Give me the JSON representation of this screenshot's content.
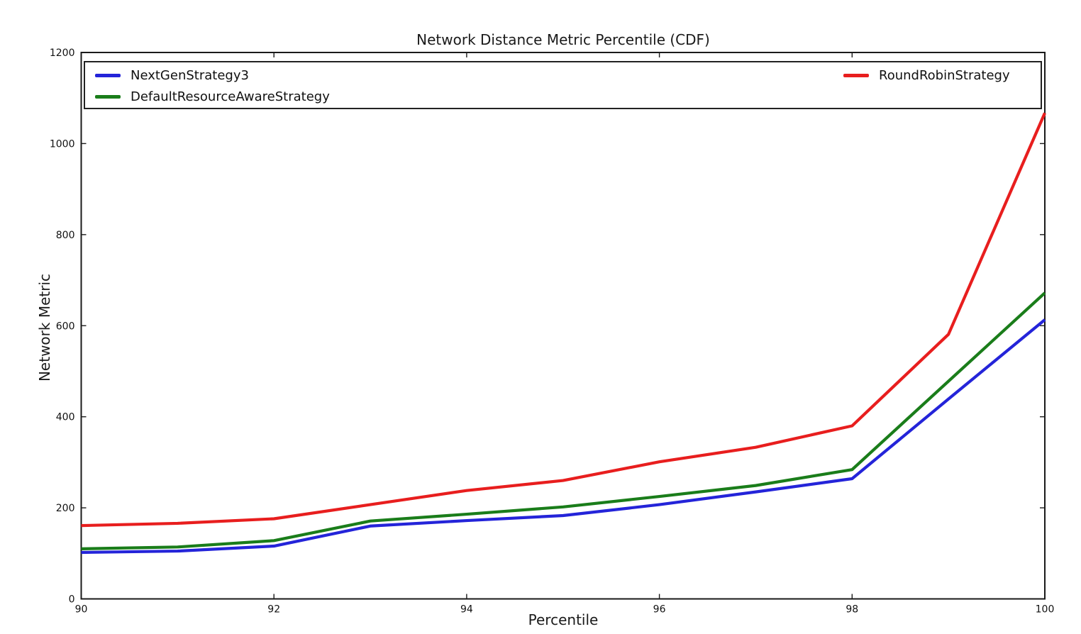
{
  "title": "Network Distance Metric Percentile (CDF)",
  "chart_data": {
    "type": "line",
    "title": "Network Distance Metric Percentile (CDF)",
    "xlabel": "Percentile",
    "ylabel": "Network Metric",
    "xlim": [
      90,
      100
    ],
    "ylim": [
      0,
      1200
    ],
    "xticks": [
      90,
      92,
      94,
      96,
      98,
      100
    ],
    "yticks": [
      0,
      200,
      400,
      600,
      800,
      1000,
      1200
    ],
    "grid": false,
    "legend_position": "top full-width box inside axes, left column and right column",
    "x": [
      90,
      91,
      92,
      93,
      94,
      95,
      96,
      97,
      98,
      99,
      100
    ],
    "series": [
      {
        "name": "NextGenStrategy3",
        "color": "#2424d9",
        "values": [
          102,
          105,
          116,
          160,
          172,
          183,
          207,
          235,
          264,
          439,
          613
        ]
      },
      {
        "name": "DefaultResourceAwareStrategy",
        "color": "#1a7d1a",
        "values": [
          110,
          114,
          128,
          171,
          186,
          202,
          225,
          249,
          284,
          478,
          672
        ]
      },
      {
        "name": "RoundRobinStrategy",
        "color": "#e81e1e",
        "values": [
          161,
          166,
          176,
          207,
          238,
          260,
          301,
          333,
          380,
          581,
          1067
        ]
      }
    ],
    "axis_color": "#1a1a1a",
    "line_width": 4.2
  }
}
